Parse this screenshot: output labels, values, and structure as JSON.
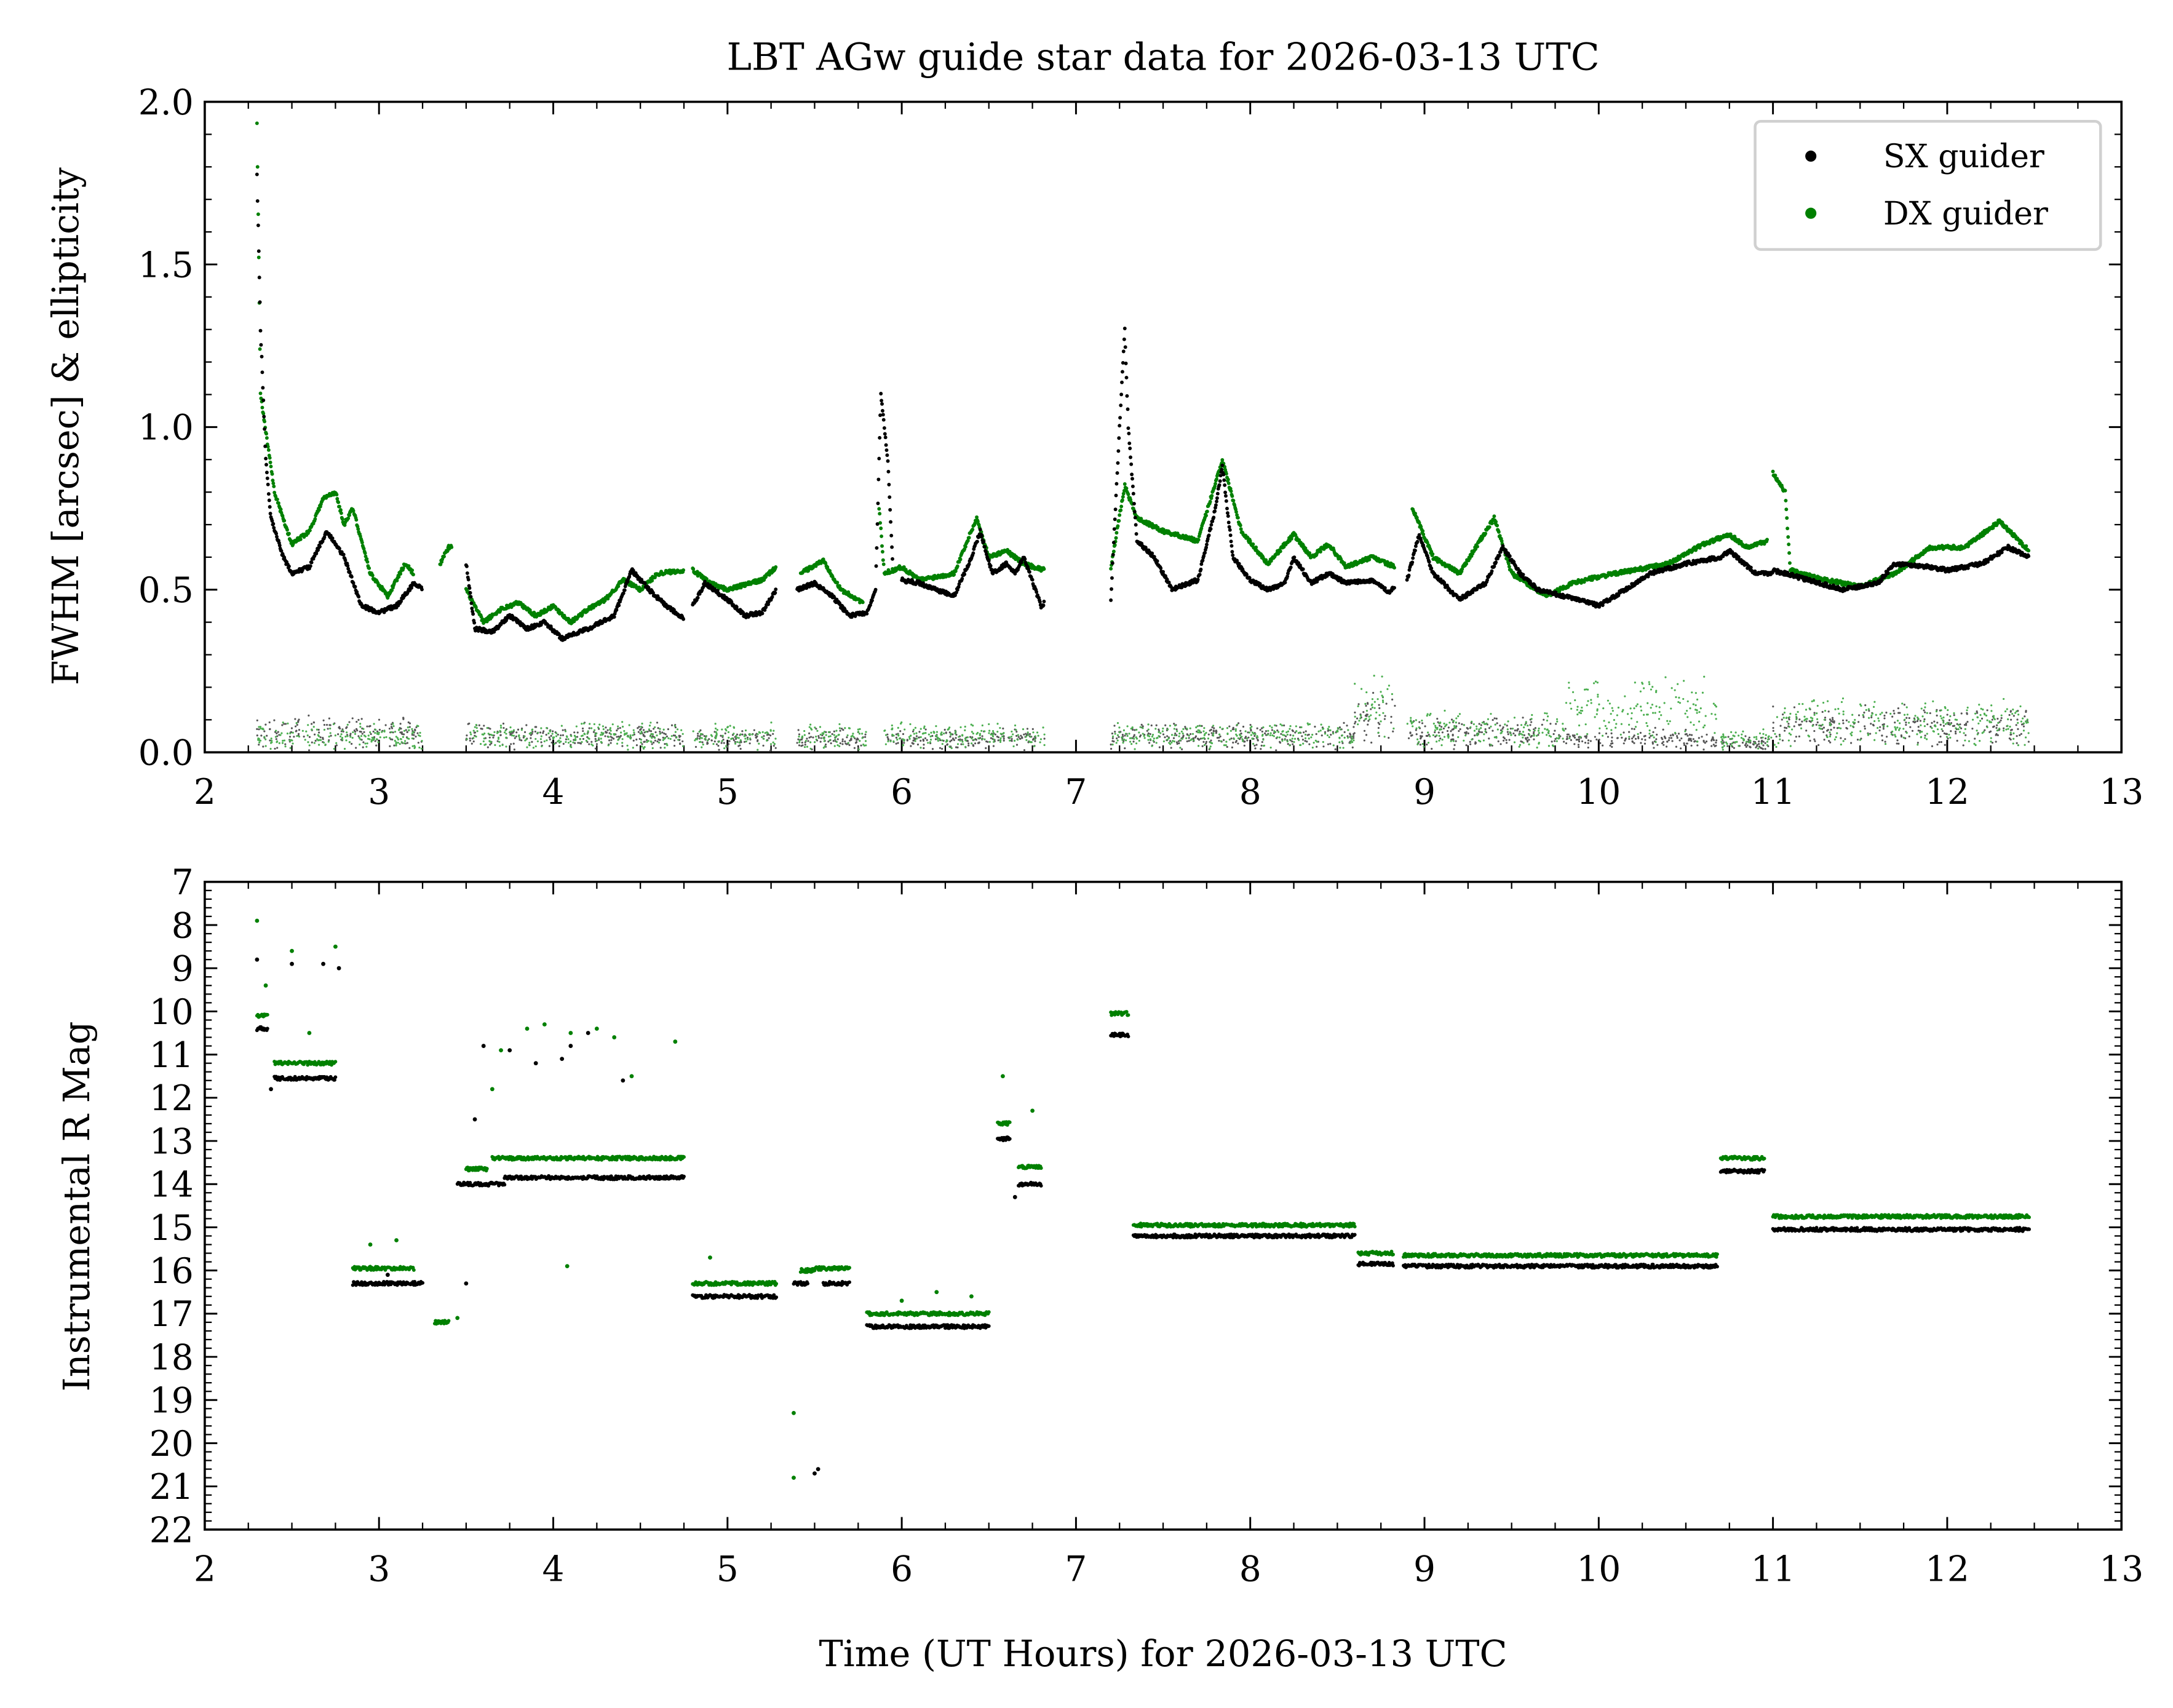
{
  "title": "LBT AGw guide star data for 2026-03-13 UTC",
  "colors": {
    "sx": "#000000",
    "dx": "#008000",
    "sx_ell": "#555555",
    "dx_ell": "#4caf50"
  },
  "chart_data": [
    {
      "type": "scatter",
      "ylabel": "FWHM [arcsec] & ellipticity",
      "xlim": [
        2,
        13
      ],
      "ylim": [
        0,
        2.0
      ],
      "xticks": [
        "2",
        "3",
        "4",
        "5",
        "6",
        "7",
        "8",
        "9",
        "10",
        "11",
        "12",
        "13"
      ],
      "yticks": [
        "0.0",
        "0.5",
        "1.0",
        "1.5",
        "2.0"
      ],
      "legend": {
        "placement": "top-right",
        "entries": [
          "SX guider",
          "DX guider"
        ]
      },
      "fwhm_sx_segments": [
        [
          [
            2.3,
            1.78
          ],
          [
            2.32,
            1.3
          ],
          [
            2.35,
            0.9
          ],
          [
            2.38,
            0.72
          ],
          [
            2.45,
            0.6
          ],
          [
            2.5,
            0.55
          ],
          [
            2.6,
            0.57
          ],
          [
            2.7,
            0.68
          ],
          [
            2.8,
            0.6
          ],
          [
            2.9,
            0.45
          ],
          [
            3.0,
            0.43
          ],
          [
            3.1,
            0.45
          ],
          [
            3.2,
            0.52
          ],
          [
            3.25,
            0.5
          ]
        ],
        [
          [
            3.5,
            0.58
          ],
          [
            3.55,
            0.38
          ],
          [
            3.65,
            0.37
          ],
          [
            3.75,
            0.42
          ],
          [
            3.85,
            0.38
          ],
          [
            3.95,
            0.4
          ],
          [
            4.05,
            0.35
          ],
          [
            4.2,
            0.38
          ],
          [
            4.35,
            0.42
          ],
          [
            4.45,
            0.56
          ],
          [
            4.55,
            0.5
          ],
          [
            4.65,
            0.45
          ],
          [
            4.75,
            0.41
          ]
        ],
        [
          [
            4.8,
            0.45
          ],
          [
            4.87,
            0.52
          ],
          [
            5.0,
            0.47
          ],
          [
            5.1,
            0.42
          ],
          [
            5.2,
            0.43
          ],
          [
            5.28,
            0.5
          ]
        ],
        [
          [
            5.4,
            0.5
          ],
          [
            5.5,
            0.52
          ],
          [
            5.6,
            0.48
          ],
          [
            5.7,
            0.42
          ],
          [
            5.8,
            0.43
          ],
          [
            5.85,
            0.5
          ],
          [
            5.88,
            1.1
          ],
          [
            5.92,
            0.9
          ],
          [
            5.95,
            0.55
          ]
        ],
        [
          [
            6.0,
            0.53
          ],
          [
            6.1,
            0.52
          ],
          [
            6.2,
            0.5
          ],
          [
            6.3,
            0.48
          ],
          [
            6.4,
            0.6
          ],
          [
            6.45,
            0.68
          ],
          [
            6.52,
            0.55
          ],
          [
            6.6,
            0.58
          ],
          [
            6.65,
            0.55
          ],
          [
            6.7,
            0.6
          ],
          [
            6.8,
            0.45
          ],
          [
            6.82,
            0.46
          ]
        ],
        [
          [
            7.2,
            0.47
          ],
          [
            7.25,
            1.0
          ],
          [
            7.28,
            1.3
          ],
          [
            7.3,
            1.0
          ],
          [
            7.35,
            0.65
          ],
          [
            7.45,
            0.6
          ],
          [
            7.55,
            0.5
          ],
          [
            7.7,
            0.53
          ],
          [
            7.8,
            0.75
          ],
          [
            7.84,
            0.88
          ],
          [
            7.9,
            0.6
          ],
          [
            8.0,
            0.53
          ],
          [
            8.1,
            0.5
          ],
          [
            8.2,
            0.52
          ],
          [
            8.25,
            0.6
          ],
          [
            8.35,
            0.52
          ],
          [
            8.45,
            0.55
          ],
          [
            8.55,
            0.52
          ],
          [
            8.7,
            0.53
          ],
          [
            8.8,
            0.49
          ],
          [
            8.83,
            0.51
          ]
        ],
        [
          [
            8.9,
            0.53
          ],
          [
            8.97,
            0.67
          ],
          [
            9.05,
            0.55
          ],
          [
            9.2,
            0.47
          ],
          [
            9.35,
            0.52
          ],
          [
            9.45,
            0.63
          ],
          [
            9.55,
            0.55
          ],
          [
            9.65,
            0.5
          ],
          [
            9.8,
            0.48
          ],
          [
            9.95,
            0.46
          ],
          [
            10.0,
            0.45
          ],
          [
            10.15,
            0.5
          ],
          [
            10.3,
            0.55
          ],
          [
            10.5,
            0.58
          ],
          [
            10.7,
            0.6
          ],
          [
            10.75,
            0.62
          ],
          [
            10.9,
            0.55
          ],
          [
            11.0,
            0.55
          ]
        ],
        [
          [
            11.0,
            0.56
          ],
          [
            11.2,
            0.53
          ],
          [
            11.4,
            0.5
          ],
          [
            11.6,
            0.52
          ],
          [
            11.7,
            0.58
          ],
          [
            11.9,
            0.57
          ],
          [
            12.0,
            0.56
          ],
          [
            12.2,
            0.58
          ],
          [
            12.35,
            0.63
          ],
          [
            12.47,
            0.6
          ]
        ]
      ],
      "fwhm_dx_segments": [
        [
          [
            2.3,
            1.94
          ],
          [
            2.32,
            1.1
          ],
          [
            2.36,
            0.95
          ],
          [
            2.4,
            0.8
          ],
          [
            2.5,
            0.64
          ],
          [
            2.6,
            0.68
          ],
          [
            2.68,
            0.78
          ],
          [
            2.75,
            0.8
          ],
          [
            2.8,
            0.7
          ],
          [
            2.85,
            0.75
          ],
          [
            2.95,
            0.55
          ],
          [
            3.05,
            0.48
          ],
          [
            3.15,
            0.58
          ],
          [
            3.2,
            0.55
          ]
        ],
        [
          [
            3.35,
            0.58
          ],
          [
            3.4,
            0.63
          ],
          [
            3.42,
            0.63
          ]
        ],
        [
          [
            3.5,
            0.5
          ],
          [
            3.6,
            0.4
          ],
          [
            3.7,
            0.44
          ],
          [
            3.8,
            0.46
          ],
          [
            3.9,
            0.42
          ],
          [
            4.0,
            0.45
          ],
          [
            4.1,
            0.4
          ],
          [
            4.2,
            0.44
          ],
          [
            4.3,
            0.47
          ],
          [
            4.4,
            0.53
          ],
          [
            4.5,
            0.5
          ],
          [
            4.6,
            0.55
          ],
          [
            4.75,
            0.56
          ]
        ],
        [
          [
            4.8,
            0.56
          ],
          [
            4.9,
            0.52
          ],
          [
            5.0,
            0.5
          ],
          [
            5.2,
            0.53
          ],
          [
            5.28,
            0.57
          ]
        ],
        [
          [
            5.42,
            0.55
          ],
          [
            5.55,
            0.59
          ],
          [
            5.65,
            0.5
          ],
          [
            5.78,
            0.46
          ]
        ],
        [
          [
            5.87,
            0.75
          ],
          [
            5.9,
            0.55
          ],
          [
            6.0,
            0.57
          ],
          [
            6.1,
            0.53
          ],
          [
            6.3,
            0.55
          ],
          [
            6.43,
            0.72
          ],
          [
            6.5,
            0.6
          ],
          [
            6.6,
            0.62
          ],
          [
            6.7,
            0.58
          ],
          [
            6.82,
            0.56
          ]
        ],
        [
          [
            7.2,
            0.57
          ],
          [
            7.28,
            0.82
          ],
          [
            7.35,
            0.72
          ],
          [
            7.5,
            0.68
          ],
          [
            7.7,
            0.65
          ],
          [
            7.84,
            0.9
          ],
          [
            7.95,
            0.68
          ],
          [
            8.1,
            0.58
          ],
          [
            8.25,
            0.67
          ],
          [
            8.35,
            0.6
          ],
          [
            8.45,
            0.64
          ],
          [
            8.55,
            0.57
          ],
          [
            8.7,
            0.6
          ],
          [
            8.83,
            0.57
          ]
        ],
        [
          [
            8.93,
            0.75
          ],
          [
            9.05,
            0.6
          ],
          [
            9.2,
            0.55
          ],
          [
            9.4,
            0.72
          ],
          [
            9.5,
            0.55
          ],
          [
            9.7,
            0.48
          ],
          [
            9.85,
            0.52
          ],
          [
            10.0,
            0.54
          ],
          [
            10.2,
            0.56
          ],
          [
            10.4,
            0.58
          ],
          [
            10.6,
            0.64
          ],
          [
            10.75,
            0.67
          ],
          [
            10.85,
            0.63
          ],
          [
            10.97,
            0.65
          ]
        ],
        [
          [
            11.0,
            0.86
          ],
          [
            11.07,
            0.8
          ],
          [
            11.1,
            0.56
          ],
          [
            11.3,
            0.53
          ],
          [
            11.5,
            0.51
          ],
          [
            11.7,
            0.55
          ],
          [
            11.9,
            0.63
          ],
          [
            12.1,
            0.63
          ],
          [
            12.3,
            0.71
          ],
          [
            12.47,
            0.62
          ]
        ]
      ],
      "ellipticity_segments": [
        {
          "x": [
            2.3,
            3.25
          ],
          "sx": 0.06,
          "dx": 0.05
        },
        {
          "x": [
            3.5,
            4.75
          ],
          "sx": 0.05,
          "dx": 0.05
        },
        {
          "x": [
            4.8,
            5.28
          ],
          "sx": 0.04,
          "dx": 0.05
        },
        {
          "x": [
            5.4,
            5.8
          ],
          "sx": 0.04,
          "dx": 0.05
        },
        {
          "x": [
            5.9,
            6.82
          ],
          "sx": 0.04,
          "dx": 0.05
        },
        {
          "x": [
            7.2,
            8.6
          ],
          "sx": 0.05,
          "dx": 0.05
        },
        {
          "x": [
            8.6,
            8.83
          ],
          "sx": 0.1,
          "dx": 0.14
        },
        {
          "x": [
            8.9,
            9.8
          ],
          "sx": 0.06,
          "dx": 0.07
        },
        {
          "x": [
            9.8,
            10.68
          ],
          "sx": 0.04,
          "dx": 0.13
        },
        {
          "x": [
            10.7,
            11.0
          ],
          "sx": 0.03,
          "dx": 0.04
        },
        {
          "x": [
            11.0,
            12.47
          ],
          "sx": 0.08,
          "dx": 0.09
        }
      ]
    },
    {
      "type": "scatter",
      "xlabel": "Time (UT Hours) for 2026-03-13 UTC",
      "ylabel": "Instrumental R Mag",
      "xlim": [
        2,
        13
      ],
      "ylim": [
        22,
        7
      ],
      "y_inverted": true,
      "xticks": [
        "2",
        "3",
        "4",
        "5",
        "6",
        "7",
        "8",
        "9",
        "10",
        "11",
        "12",
        "13"
      ],
      "yticks": [
        "7",
        "8",
        "9",
        "10",
        "11",
        "12",
        "13",
        "14",
        "15",
        "16",
        "17",
        "18",
        "19",
        "20",
        "21",
        "22"
      ],
      "mag_sx_segments": [
        [
          2.3,
          2.36,
          10.4
        ],
        [
          2.4,
          2.75,
          11.55
        ],
        [
          2.85,
          3.25,
          16.3
        ],
        [
          3.45,
          3.72,
          14.0
        ],
        [
          3.72,
          4.75,
          13.85
        ],
        [
          4.8,
          5.28,
          16.6
        ],
        [
          5.38,
          5.46,
          16.3
        ],
        [
          5.55,
          5.7,
          16.3
        ],
        [
          5.8,
          6.5,
          17.3
        ],
        [
          6.55,
          6.62,
          12.95
        ],
        [
          6.67,
          6.8,
          14.0
        ],
        [
          7.2,
          7.3,
          10.55
        ],
        [
          7.33,
          8.6,
          15.2
        ],
        [
          8.62,
          8.82,
          15.85
        ],
        [
          8.88,
          10.68,
          15.9
        ],
        [
          10.7,
          10.95,
          13.7
        ],
        [
          11.0,
          12.47,
          15.05
        ]
      ],
      "mag_dx_segments": [
        [
          2.3,
          2.36,
          10.1
        ],
        [
          2.4,
          2.75,
          11.2
        ],
        [
          2.85,
          3.2,
          15.95
        ],
        [
          3.32,
          3.4,
          17.2
        ],
        [
          3.5,
          3.62,
          13.65
        ],
        [
          3.65,
          4.75,
          13.4
        ],
        [
          4.8,
          5.28,
          16.3
        ],
        [
          5.42,
          5.5,
          16.0
        ],
        [
          5.5,
          5.7,
          15.95
        ],
        [
          5.8,
          6.5,
          17.0
        ],
        [
          6.55,
          6.62,
          12.6
        ],
        [
          6.67,
          6.8,
          13.6
        ],
        [
          7.2,
          7.3,
          10.05
        ],
        [
          7.33,
          8.6,
          14.95
        ],
        [
          8.62,
          8.82,
          15.6
        ],
        [
          8.88,
          10.68,
          15.65
        ],
        [
          10.7,
          10.95,
          13.4
        ],
        [
          11.0,
          12.47,
          14.75
        ]
      ],
      "mag_sx_outliers": [
        [
          2.3,
          8.8
        ],
        [
          2.5,
          8.9
        ],
        [
          2.68,
          8.9
        ],
        [
          2.77,
          9.0
        ],
        [
          2.38,
          11.8
        ],
        [
          3.55,
          12.5
        ],
        [
          3.6,
          10.8
        ],
        [
          3.75,
          10.9
        ],
        [
          3.9,
          11.2
        ],
        [
          4.05,
          11.1
        ],
        [
          4.1,
          10.8
        ],
        [
          4.2,
          10.5
        ],
        [
          4.4,
          11.6
        ],
        [
          3.5,
          16.3
        ],
        [
          5.5,
          20.7
        ],
        [
          5.52,
          20.6
        ],
        [
          6.65,
          14.3
        ],
        [
          3.05,
          16.1
        ]
      ],
      "mag_dx_outliers": [
        [
          2.3,
          7.9
        ],
        [
          2.35,
          9.4
        ],
        [
          2.5,
          8.6
        ],
        [
          2.75,
          8.5
        ],
        [
          2.6,
          10.5
        ],
        [
          3.65,
          11.8
        ],
        [
          3.7,
          10.9
        ],
        [
          3.85,
          10.4
        ],
        [
          3.95,
          10.3
        ],
        [
          4.1,
          10.5
        ],
        [
          4.25,
          10.4
        ],
        [
          4.35,
          10.6
        ],
        [
          4.45,
          11.5
        ],
        [
          4.7,
          10.7
        ],
        [
          4.08,
          15.9
        ],
        [
          4.9,
          15.7
        ],
        [
          5.38,
          19.3
        ],
        [
          5.38,
          20.8
        ],
        [
          6.58,
          11.5
        ],
        [
          6.75,
          12.3
        ],
        [
          2.95,
          15.4
        ],
        [
          3.1,
          15.3
        ],
        [
          3.45,
          17.1
        ],
        [
          6.0,
          16.7
        ],
        [
          6.2,
          16.5
        ],
        [
          6.4,
          16.6
        ]
      ]
    }
  ]
}
